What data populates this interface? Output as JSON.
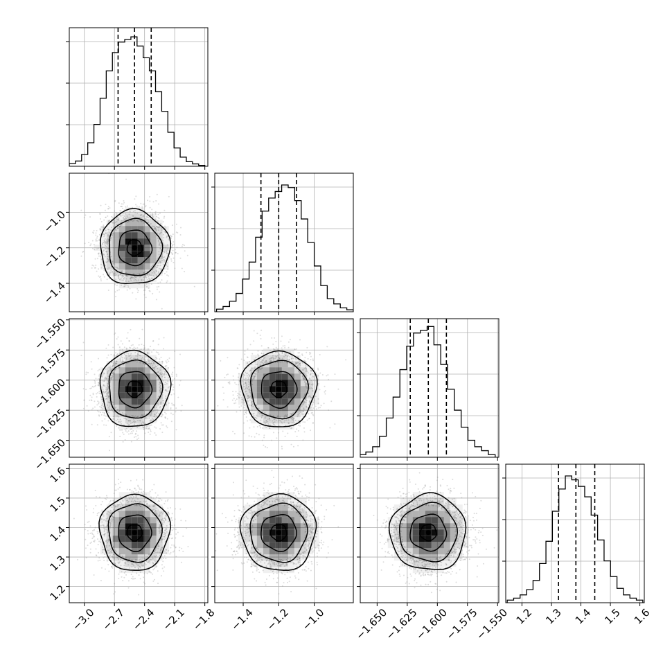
{
  "chart_data": {
    "type": "corner",
    "parameters": [
      {
        "name": "",
        "quantiles": [
          -2.664,
          -2.5,
          -2.334
        ],
        "hist": {
          "range": [
            -3.15,
            -1.8
          ],
          "counts": [
            0.02,
            0.04,
            0.09,
            0.18,
            0.32,
            0.52,
            0.73,
            0.87,
            0.95,
            0.97,
            0.99,
            0.92,
            0.83,
            0.73,
            0.57,
            0.42,
            0.26,
            0.14,
            0.07,
            0.035,
            0.018,
            0.007
          ]
        }
      },
      {
        "name": "",
        "quantiles": [
          -1.3,
          -1.2,
          -1.1
        ],
        "hist": {
          "range": [
            -1.55,
            -0.78
          ],
          "counts": [
            0.02,
            0.04,
            0.08,
            0.14,
            0.25,
            0.38,
            0.57,
            0.77,
            0.87,
            0.92,
            0.97,
            0.95,
            0.85,
            0.71,
            0.53,
            0.35,
            0.2,
            0.1,
            0.06,
            0.03,
            0.015
          ]
        }
      },
      {
        "name": "",
        "quantiles": [
          -1.6225,
          -1.6075,
          -1.5925
        ],
        "hist": {
          "range": [
            -1.665,
            -1.552
          ],
          "counts": [
            0.02,
            0.04,
            0.08,
            0.16,
            0.3,
            0.46,
            0.67,
            0.85,
            0.95,
            0.97,
            1.0,
            0.86,
            0.71,
            0.52,
            0.36,
            0.23,
            0.13,
            0.08,
            0.05,
            0.02
          ]
        }
      },
      {
        "name": "",
        "quantiles": [
          1.324,
          1.383,
          1.447
        ],
        "hist": {
          "range": [
            1.15,
            1.61
          ],
          "counts": [
            0.02,
            0.035,
            0.06,
            0.1,
            0.17,
            0.3,
            0.47,
            0.7,
            0.87,
            0.97,
            0.94,
            0.89,
            0.81,
            0.67,
            0.48,
            0.32,
            0.2,
            0.11,
            0.06,
            0.035,
            0.02
          ]
        }
      }
    ],
    "tick_labels": {
      "x": [
        [
          "−3.0",
          "−2.7",
          "−2.4",
          "−2.1",
          "−1.8"
        ],
        [
          "−1.4",
          "−1.2",
          "−1.0"
        ],
        [
          "−1.650",
          "−1.625",
          "−1.600",
          "−1.575",
          "−1.550"
        ],
        [
          "1.2",
          "1.3",
          "1.4",
          "1.5",
          "1.6"
        ]
      ],
      "y": [
        [],
        [
          "−1.0",
          "−1.2",
          "−1.4"
        ],
        [
          "−1.550",
          "−1.575",
          "−1.600",
          "−1.625",
          "−1.650"
        ],
        [
          "1.6",
          "1.5",
          "1.4",
          "1.3",
          "1.2"
        ]
      ]
    },
    "tick_values": {
      "x": [
        [
          -3.0,
          -2.7,
          -2.4,
          -2.1,
          -1.8
        ],
        [
          -1.4,
          -1.2,
          -1.0
        ],
        [
          -1.65,
          -1.625,
          -1.6,
          -1.575,
          -1.55
        ],
        [
          1.2,
          1.3,
          1.4,
          1.5,
          1.6
        ]
      ],
      "y": [
        [],
        [
          -1.0,
          -1.2,
          -1.4
        ],
        [
          -1.55,
          -1.575,
          -1.6,
          -1.625,
          -1.65
        ],
        [
          1.6,
          1.5,
          1.4,
          1.3,
          1.2
        ]
      ]
    },
    "axis_ranges": [
      [
        -3.15,
        -1.77
      ],
      [
        -1.56,
        -0.78
      ],
      [
        -1.664,
        -1.549
      ],
      [
        1.145,
        1.615
      ]
    ],
    "grid": true,
    "quantile_levels": [
      0.16,
      0.5,
      0.84
    ],
    "colors": {
      "line": "#000000",
      "grid": "#b0b0b0",
      "scatter": "#9a9a9a",
      "density": "#000000"
    }
  }
}
